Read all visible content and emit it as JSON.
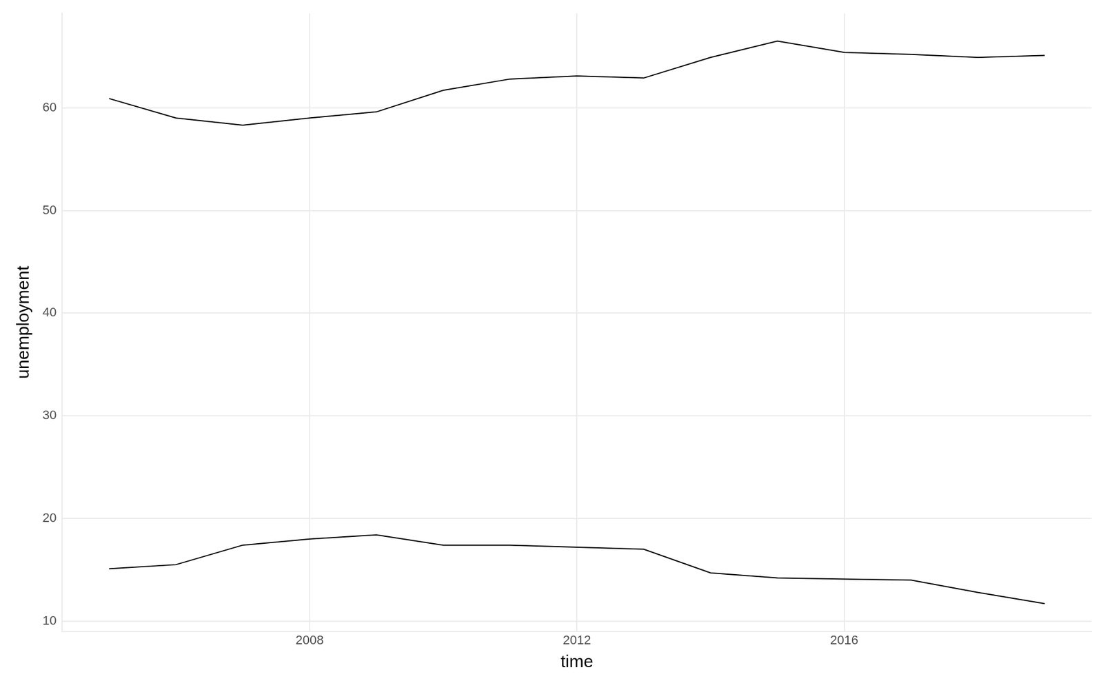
{
  "chart_data": {
    "type": "line",
    "x_label": "time",
    "y_label": "unemployment",
    "x": [
      2005,
      2006,
      2007,
      2008,
      2009,
      2010,
      2011,
      2012,
      2013,
      2014,
      2015,
      2016,
      2017,
      2018,
      2019
    ],
    "series": [
      {
        "color": "#000000",
        "values": [
          60.9,
          59.0,
          58.3,
          59.0,
          59.6,
          61.7,
          62.8,
          63.1,
          62.9,
          64.9,
          66.5,
          65.4,
          65.2,
          64.9,
          65.1
        ]
      },
      {
        "color": "#000000",
        "values": [
          15.1,
          15.5,
          17.4,
          18.0,
          18.4,
          17.4,
          17.4,
          17.2,
          17.0,
          14.7,
          14.2,
          14.1,
          14.0,
          12.8,
          11.7
        ]
      }
    ],
    "xlim": [
      2004.3,
      2019.7
    ],
    "xticks": [
      2008,
      2012,
      2016
    ],
    "ylim": [
      9,
      69.2
    ],
    "yticks": [
      10,
      20,
      30,
      40,
      50,
      60
    ],
    "grid": true
  }
}
